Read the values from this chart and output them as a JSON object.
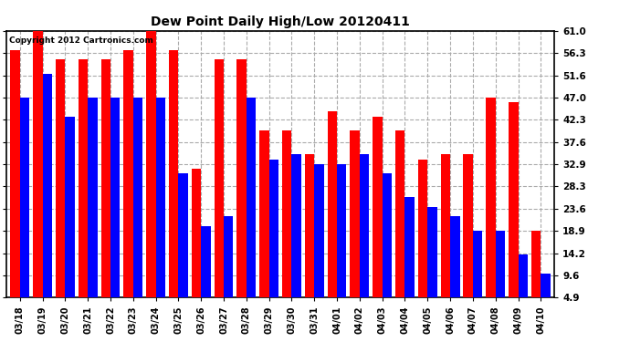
{
  "title": "Dew Point Daily High/Low 20120411",
  "copyright": "Copyright 2012 Cartronics.com",
  "dates": [
    "03/18",
    "03/19",
    "03/20",
    "03/21",
    "03/22",
    "03/23",
    "03/24",
    "03/25",
    "03/26",
    "03/27",
    "03/28",
    "03/29",
    "03/30",
    "03/31",
    "04/01",
    "04/02",
    "04/03",
    "04/04",
    "04/05",
    "04/06",
    "04/07",
    "04/08",
    "04/09",
    "04/10"
  ],
  "highs": [
    57,
    61,
    55,
    55,
    55,
    57,
    61,
    57,
    32,
    55,
    55,
    40,
    40,
    35,
    44,
    40,
    43,
    40,
    34,
    35,
    35,
    47,
    46,
    19
  ],
  "lows": [
    47,
    52,
    43,
    47,
    47,
    47,
    47,
    31,
    20,
    22,
    47,
    34,
    35,
    33,
    33,
    35,
    31,
    26,
    24,
    22,
    19,
    19,
    14,
    10
  ],
  "high_color": "#ff0000",
  "low_color": "#0000ff",
  "yticks": [
    4.9,
    9.6,
    14.2,
    18.9,
    23.6,
    28.3,
    32.9,
    37.6,
    42.3,
    47.0,
    51.6,
    56.3,
    61.0
  ],
  "ymin": 4.9,
  "ymax": 61.0,
  "background_color": "#ffffff",
  "grid_color": "#aaaaaa"
}
